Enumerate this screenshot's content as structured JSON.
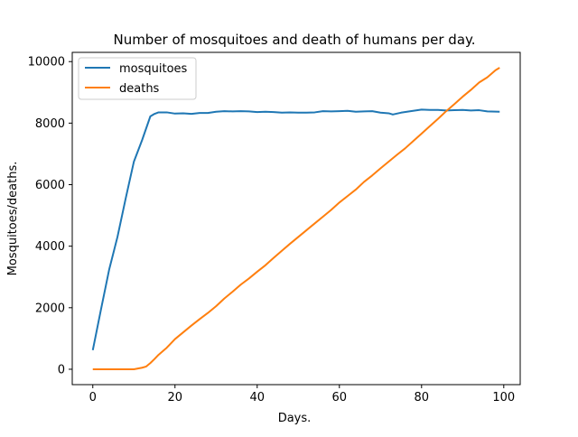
{
  "chart_data": {
    "type": "line",
    "title": "Number of mosquitoes and death of humans per day.",
    "xlabel": "Days.",
    "ylabel": "Mosquitoes/deaths.",
    "xlim": [
      -5,
      104
    ],
    "ylim": [
      -500,
      10300
    ],
    "xticks": [
      0,
      20,
      40,
      60,
      80,
      100
    ],
    "yticks": [
      0,
      2000,
      4000,
      6000,
      8000,
      10000
    ],
    "grid": false,
    "legend": "top-left",
    "series": [
      {
        "name": "mosquitoes",
        "color": "#1f77b4",
        "x": [
          0,
          2,
          4,
          6,
          8,
          10,
          12,
          14,
          15,
          16,
          18,
          20,
          22,
          24,
          26,
          28,
          30,
          32,
          34,
          36,
          38,
          40,
          42,
          44,
          46,
          48,
          50,
          52,
          54,
          56,
          58,
          60,
          62,
          64,
          66,
          68,
          70,
          72,
          73,
          75,
          77,
          80,
          82,
          84,
          86,
          88,
          90,
          92,
          94,
          96,
          99
        ],
        "y": [
          620,
          1950,
          3250,
          4300,
          5550,
          6750,
          7450,
          8220,
          8300,
          8350,
          8350,
          8310,
          8320,
          8300,
          8330,
          8330,
          8370,
          8390,
          8380,
          8390,
          8380,
          8360,
          8370,
          8360,
          8340,
          8350,
          8340,
          8340,
          8350,
          8390,
          8380,
          8390,
          8400,
          8370,
          8380,
          8390,
          8340,
          8320,
          8280,
          8340,
          8380,
          8440,
          8430,
          8430,
          8410,
          8420,
          8430,
          8410,
          8420,
          8380,
          8370
        ]
      },
      {
        "name": "deaths",
        "color": "#ff7f0e",
        "x": [
          0,
          2,
          4,
          6,
          8,
          10,
          12,
          13,
          14,
          15,
          16,
          18,
          20,
          22,
          24,
          26,
          28,
          30,
          32,
          34,
          36,
          38,
          40,
          42,
          44,
          46,
          48,
          50,
          52,
          54,
          56,
          58,
          60,
          62,
          64,
          66,
          68,
          70,
          72,
          74,
          76,
          78,
          80,
          82,
          84,
          86,
          88,
          90,
          92,
          94,
          96,
          98,
          99
        ],
        "y": [
          0,
          0,
          0,
          0,
          0,
          0,
          50,
          90,
          200,
          330,
          470,
          700,
          980,
          1200,
          1420,
          1630,
          1830,
          2050,
          2300,
          2520,
          2750,
          2950,
          3170,
          3380,
          3620,
          3850,
          4080,
          4300,
          4520,
          4740,
          4960,
          5180,
          5420,
          5630,
          5840,
          6090,
          6300,
          6530,
          6750,
          6970,
          7180,
          7420,
          7660,
          7900,
          8140,
          8390,
          8620,
          8860,
          9080,
          9320,
          9490,
          9720,
          9800
        ]
      }
    ]
  }
}
